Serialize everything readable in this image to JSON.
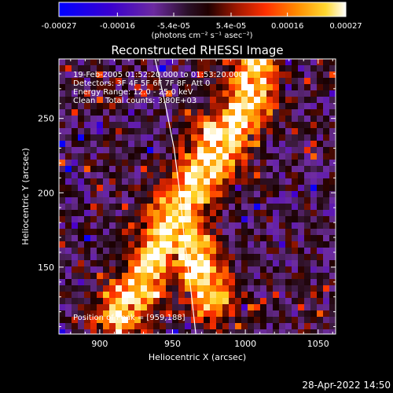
{
  "chart_data": {
    "type": "heatmap",
    "title": "Reconstructed RHESSI Image",
    "xlabel": "Heliocentric X (arcsec)",
    "ylabel": "Heliocentric Y (arcsec)",
    "xlim": [
      872,
      1062
    ],
    "ylim": [
      105,
      290
    ],
    "x_ticks": [
      900,
      950,
      1000,
      1050
    ],
    "x_tick_labels": [
      "900",
      "950",
      "1000",
      "1050"
    ],
    "y_ticks": [
      150,
      200,
      250
    ],
    "y_tick_labels": [
      "150",
      "200",
      "250"
    ],
    "colorbar": {
      "range": [
        -0.00027,
        0.00027
      ],
      "ticks": [
        -0.00027,
        -0.00016,
        -5.4e-05,
        5.4e-05,
        0.00016,
        0.00027
      ],
      "tick_labels": [
        "-0.00027",
        "-0.00016",
        "-5.4e-05",
        "5.4e-05",
        "0.00016",
        "0.00027"
      ],
      "unit_label": "(photons cm⁻² s⁻¹ asec⁻²)",
      "colors": [
        "#0000ff",
        "#4a00c8",
        "#6e2ca0",
        "#3a1a3a",
        "#1a0000",
        "#a01800",
        "#ff3000",
        "#ff8a00",
        "#ffd020",
        "#ffffff"
      ]
    },
    "annotations": [
      "19-Feb-2005 01:52:20.000 to 01:53:20.000",
      "Detectors: 3F 4F 5F 6F 7F 8F, Att 0",
      "Energy Range: 12.0 - 25.0 keV",
      "Clean    Total counts: 3.80E+03"
    ],
    "peak_label": "Position of Peak = [959,188]",
    "limb_curve": [
      [
        938,
        290
      ],
      [
        945,
        260
      ],
      [
        951,
        230
      ],
      [
        955,
        200
      ],
      [
        958,
        170
      ],
      [
        962,
        140
      ],
      [
        966,
        105
      ]
    ],
    "emission_ridges": [
      {
        "x": [
          1008,
          1004,
          996,
          985,
          975,
          962,
          950
        ],
        "y": [
          290,
          270,
          250,
          232,
          215,
          200,
          188
        ]
      },
      {
        "x": [
          956,
          948,
          940,
          932,
          925,
          915
        ],
        "y": [
          188,
          175,
          160,
          145,
          132,
          118
        ]
      },
      {
        "x": [
          962,
          970,
          978,
          985
        ],
        "y": [
          200,
          215,
          230,
          240
        ]
      },
      {
        "x": [
          960,
          968,
          976
        ],
        "y": [
          165,
          150,
          130
        ]
      }
    ]
  },
  "footer_timestamp": "28-Apr-2022 14:50"
}
